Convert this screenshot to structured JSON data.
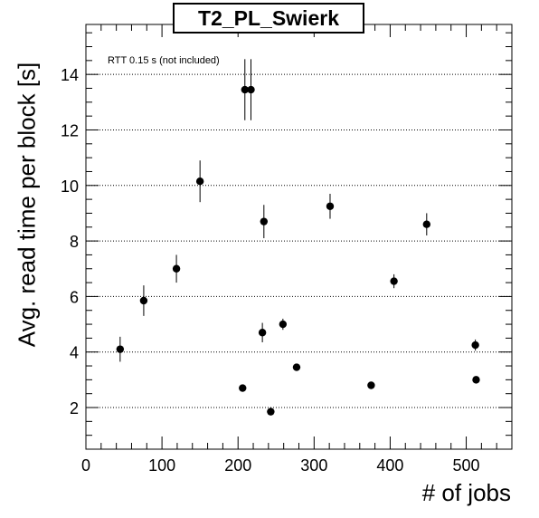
{
  "chart_data": {
    "type": "scatter",
    "title": "T2_PL_Swierk",
    "xlabel": "# of jobs",
    "ylabel": "Avg. read time per block [s]",
    "annotation": "RTT 0.15 s (not included)",
    "xlim": [
      0,
      560
    ],
    "ylim": [
      0.5,
      15.8
    ],
    "x_ticks": [
      0,
      100,
      200,
      300,
      400,
      500
    ],
    "y_ticks": [
      2,
      4,
      6,
      8,
      10,
      12,
      14
    ],
    "grid": "horizontal dotted at major y ticks",
    "error_bars": true,
    "points": [
      {
        "x": 45,
        "y": 4.1,
        "err": 0.45
      },
      {
        "x": 76,
        "y": 5.85,
        "err": 0.55
      },
      {
        "x": 119,
        "y": 7.0,
        "err": 0.5
      },
      {
        "x": 150,
        "y": 10.15,
        "err": 0.75
      },
      {
        "x": 206,
        "y": 2.7,
        "err": 0.08
      },
      {
        "x": 209,
        "y": 13.45,
        "err": 1.1
      },
      {
        "x": 217,
        "y": 13.45,
        "err": 1.1
      },
      {
        "x": 232,
        "y": 4.7,
        "err": 0.35
      },
      {
        "x": 234,
        "y": 8.7,
        "err": 0.6
      },
      {
        "x": 243,
        "y": 1.85,
        "err": 0.08
      },
      {
        "x": 259,
        "y": 5.0,
        "err": 0.2
      },
      {
        "x": 277,
        "y": 3.45,
        "err": 0.1
      },
      {
        "x": 321,
        "y": 9.25,
        "err": 0.45
      },
      {
        "x": 375,
        "y": 2.8,
        "err": 0.1
      },
      {
        "x": 405,
        "y": 6.55,
        "err": 0.25
      },
      {
        "x": 448,
        "y": 8.6,
        "err": 0.4
      },
      {
        "x": 512,
        "y": 4.25,
        "err": 0.2
      },
      {
        "x": 513,
        "y": 3.0,
        "err": 0.12
      }
    ]
  }
}
